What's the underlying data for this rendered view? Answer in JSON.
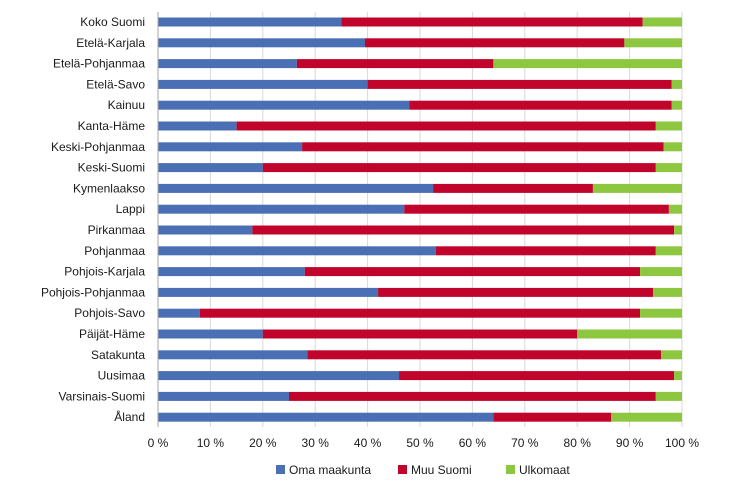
{
  "chart_data": {
    "type": "bar",
    "orientation": "horizontal",
    "stacked": true,
    "categories": [
      "Koko Suomi",
      "Etelä-Karjala",
      "Etelä-Pohjanmaa",
      "Etelä-Savo",
      "Kainuu",
      "Kanta-Häme",
      "Keski-Pohjanmaa",
      "Keski-Suomi",
      "Kymenlaakso",
      "Lappi",
      "Pirkanmaa",
      "Pohjanmaa",
      "Pohjois-Karjala",
      "Pohjois-Pohjanmaa",
      "Pohjois-Savo",
      "Päijät-Häme",
      "Satakunta",
      "Uusimaa",
      "Varsinais-Suomi",
      "Åland"
    ],
    "series": [
      {
        "name": "Oma maakunta",
        "color": "#4a6fb5",
        "values": [
          35,
          39.5,
          26.5,
          40,
          48,
          15,
          27.5,
          20,
          52.5,
          47,
          18,
          53,
          28,
          42,
          8,
          20,
          28.5,
          46,
          25,
          64
        ]
      },
      {
        "name": "Muu Suomi",
        "color": "#c0042b",
        "values": [
          57.5,
          49.5,
          37.5,
          58,
          50,
          80,
          69,
          75,
          30.5,
          50.5,
          80.5,
          42,
          64,
          52.5,
          84,
          60,
          67.5,
          52.5,
          70,
          22.5
        ]
      },
      {
        "name": "Ulkomaat",
        "color": "#8dc63f",
        "values": [
          7.5,
          11,
          36,
          2,
          2,
          5,
          3.5,
          5,
          17,
          2.5,
          1.5,
          5,
          8,
          5.5,
          8,
          20,
          4,
          1.5,
          5,
          13.5
        ]
      }
    ],
    "xlim": [
      0,
      100
    ],
    "x_ticks": [
      "0 %",
      "10 %",
      "20 %",
      "30 %",
      "40 %",
      "50 %",
      "60 %",
      "70 %",
      "80 %",
      "90 %",
      "100 %"
    ],
    "grid": "vertical",
    "legend_position": "bottom",
    "title": "",
    "xlabel": "",
    "ylabel": ""
  }
}
